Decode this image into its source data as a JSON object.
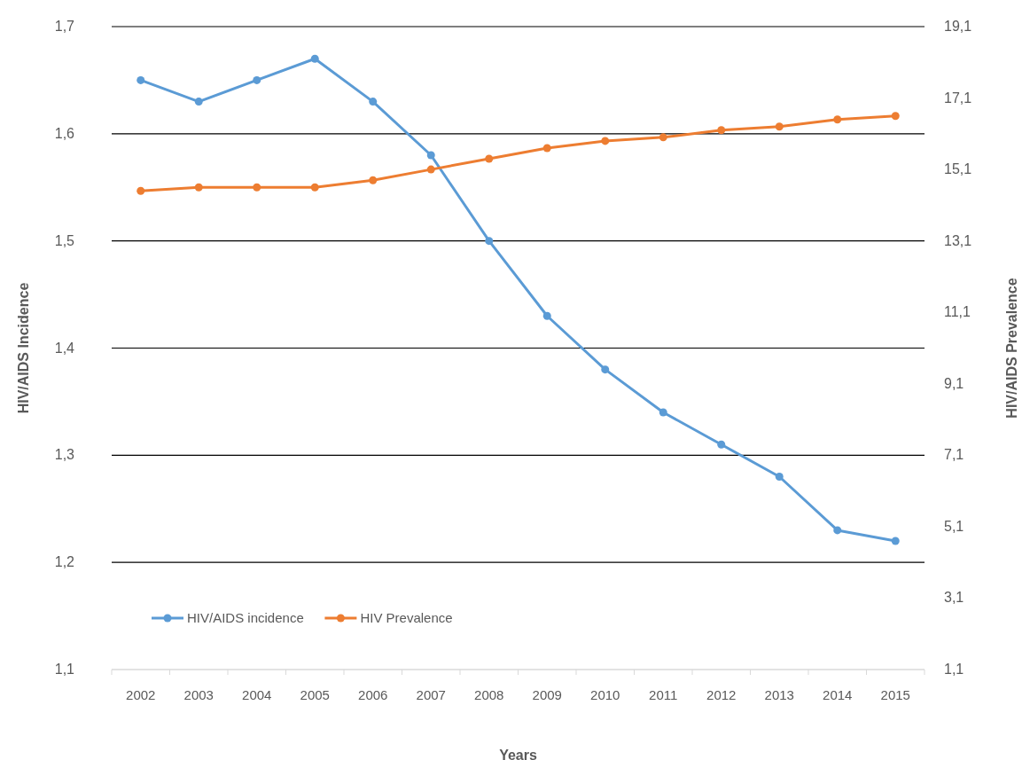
{
  "chart_data": {
    "type": "line",
    "xlabel": "Years",
    "ylabel": "HIV/AIDS Incidence",
    "y2label": "HIV/AIDS Prevalence",
    "categories": [
      "2002",
      "2003",
      "2004",
      "2005",
      "2006",
      "2007",
      "2008",
      "2009",
      "2010",
      "2011",
      "2012",
      "2013",
      "2014",
      "2015"
    ],
    "series": [
      {
        "name": "HIV/AIDS incidence",
        "color": "#5b9bd5",
        "values": [
          1.65,
          1.63,
          1.65,
          1.67,
          1.63,
          1.58,
          1.5,
          1.43,
          1.38,
          1.34,
          1.31,
          1.28,
          1.23,
          1.22
        ]
      },
      {
        "name": "HIV Prevalence",
        "color": "#ed7d31",
        "axis": "y2",
        "values": [
          14.5,
          14.6,
          14.6,
          14.6,
          14.8,
          15.1,
          15.4,
          15.7,
          15.9,
          16.0,
          16.2,
          16.3,
          16.5,
          16.6
        ]
      }
    ],
    "ylim": [
      1.1,
      1.7
    ],
    "yticks": [
      {
        "value": 1.1,
        "label": "1,1"
      },
      {
        "value": 1.2,
        "label": "1,2"
      },
      {
        "value": 1.3,
        "label": "1,3"
      },
      {
        "value": 1.4,
        "label": "1,4"
      },
      {
        "value": 1.5,
        "label": "1,5"
      },
      {
        "value": 1.6,
        "label": "1,6"
      },
      {
        "value": 1.7,
        "label": "1,7"
      }
    ],
    "y2lim": [
      1.1,
      19.1
    ],
    "y2ticks": [
      {
        "value": 1.1,
        "label": "1,1"
      },
      {
        "value": 3.1,
        "label": "3,1"
      },
      {
        "value": 5.1,
        "label": "5,1"
      },
      {
        "value": 7.1,
        "label": "7,1"
      },
      {
        "value": 9.1,
        "label": "9,1"
      },
      {
        "value": 11.1,
        "label": "11,1"
      },
      {
        "value": 13.1,
        "label": "13,1"
      },
      {
        "value": 15.1,
        "label": "15,1"
      },
      {
        "value": 17.1,
        "label": "17,1"
      },
      {
        "value": 19.1,
        "label": "19,1"
      }
    ],
    "grid": "y",
    "legend": "bottom left",
    "marker": "circle",
    "line_style": "solid"
  }
}
